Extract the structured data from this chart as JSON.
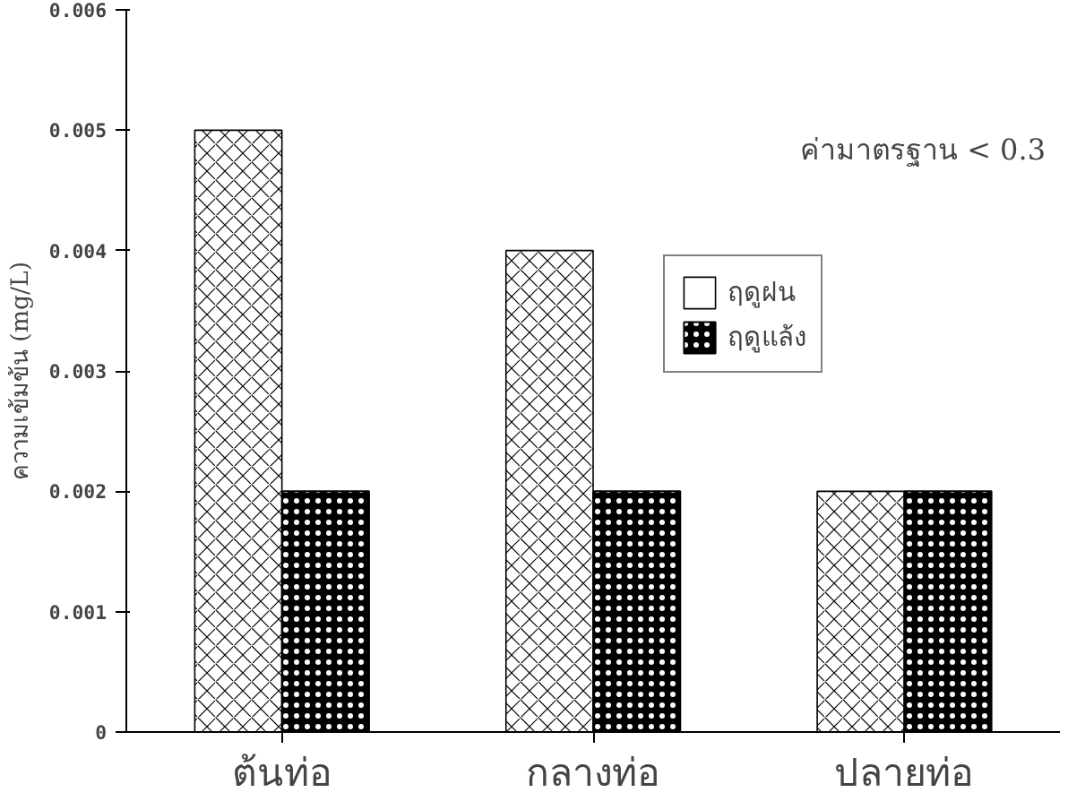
{
  "chart_data": {
    "type": "bar",
    "ylabel": "ความเข้มข้น (mg/L)",
    "categories": [
      "ต้นท่อ",
      "กลางท่อ",
      "ปลายท่อ"
    ],
    "series": [
      {
        "name": "ฤดูฝน",
        "color": "#ffffff",
        "values": [
          0.005,
          0.004,
          0.002
        ]
      },
      {
        "name": "ฤดูแล้ง",
        "color": "#000000",
        "values": [
          0.002,
          0.002,
          0.002
        ]
      }
    ],
    "ylim": [
      0,
      0.006
    ],
    "yticks": [
      {
        "value": 0,
        "label": "0"
      },
      0.001,
      0.002,
      0.003,
      0.004,
      0.005,
      0.006
    ],
    "annotations": [
      "ค่ามาตรฐาน < 0.3"
    ],
    "legend": "top right",
    "grid": false
  }
}
